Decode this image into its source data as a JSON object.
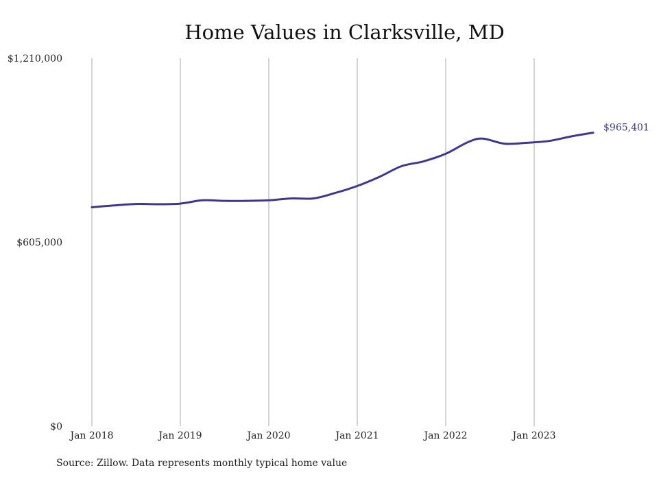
{
  "chart_data": {
    "type": "line",
    "title": "Home Values in Clarksville, MD",
    "source": "Source: Zillow. Data represents monthly typical home value",
    "ylim": [
      0,
      1210000
    ],
    "y_ticks": [
      {
        "value": 0,
        "label": "$0"
      },
      {
        "value": 605000,
        "label": "$605,000"
      },
      {
        "value": 1210000,
        "label": "$1,210,000"
      }
    ],
    "x_ticks": [
      "Jan 2018",
      "Jan 2019",
      "Jan 2020",
      "Jan 2021",
      "Jan 2022",
      "Jan 2023"
    ],
    "grid": "vertical",
    "line_color": "#3b3799",
    "end_label": "$965,401",
    "series": [
      {
        "x": [
          "2018-01",
          "2018-04",
          "2018-07",
          "2018-10",
          "2019-01",
          "2019-04",
          "2019-07",
          "2019-10",
          "2020-01",
          "2020-04",
          "2020-07",
          "2020-10",
          "2021-01",
          "2021-04",
          "2021-07",
          "2021-10",
          "2022-01",
          "2022-04",
          "2022-06",
          "2022-09",
          "2022-12",
          "2023-03",
          "2023-06",
          "2023-09"
        ],
        "values": [
          720000,
          726000,
          731000,
          730000,
          732000,
          743000,
          741000,
          741000,
          743000,
          749000,
          749000,
          767000,
          790000,
          820000,
          855000,
          871000,
          896000,
          934000,
          946000,
          929000,
          932000,
          938000,
          953000,
          965401
        ]
      }
    ]
  }
}
